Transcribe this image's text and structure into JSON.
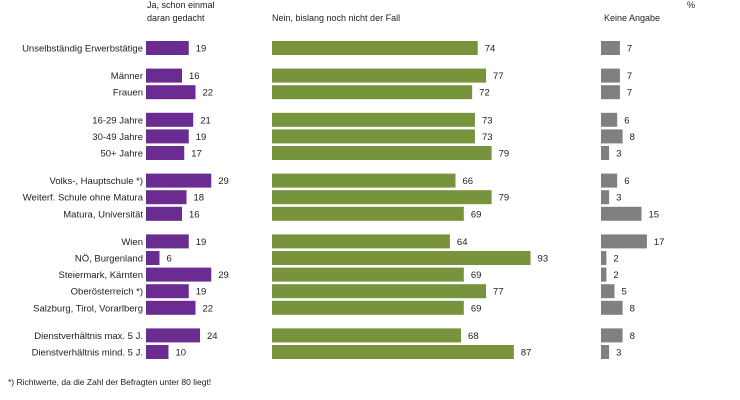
{
  "chart_data": {
    "type": "bar",
    "headers": {
      "ja_line1": "Ja, schon einmal",
      "ja_line2": "daran gedacht",
      "nein": "Nein, bislang noch nicht der Fall",
      "keine": "Keine Angabe",
      "unit": "%"
    },
    "categories": [
      "Unselbständig Erwerbstätige",
      "Männer",
      "Frauen",
      "16-29 Jahre",
      "30-49 Jahre",
      "50+ Jahre",
      "Volks-, Hauptschule *)",
      "Weiterf. Schule ohne Matura",
      "Matura, Universität",
      "Wien",
      "NÖ, Burgenland",
      "Steiermark, Kärnten",
      "Oberösterreich *)",
      "Salzburg, Tirol, Vorarlberg",
      "Dienstverhältnis max. 5 J.",
      "Dienstverhältnis mind. 5 J."
    ],
    "groups": [
      [
        0
      ],
      [
        1,
        2
      ],
      [
        3,
        4,
        5
      ],
      [
        6,
        7,
        8
      ],
      [
        9,
        10,
        11,
        12,
        13
      ],
      [
        14,
        15
      ]
    ],
    "series": [
      {
        "name": "Ja, schon einmal daran gedacht",
        "color": "#6a2c91",
        "values": [
          19,
          16,
          22,
          21,
          19,
          17,
          29,
          18,
          16,
          19,
          6,
          29,
          19,
          22,
          24,
          10
        ]
      },
      {
        "name": "Nein, bislang noch nicht der Fall",
        "color": "#77933c",
        "values": [
          74,
          77,
          72,
          73,
          73,
          79,
          66,
          79,
          69,
          64,
          93,
          69,
          77,
          69,
          68,
          87
        ]
      },
      {
        "name": "Keine Angabe",
        "color": "#808080",
        "values": [
          7,
          7,
          7,
          6,
          8,
          3,
          6,
          3,
          15,
          17,
          2,
          2,
          5,
          8,
          8,
          3
        ]
      }
    ],
    "footnote": "*) Richtwerte, da die Zahl der Befragten unter 80 liegt!"
  }
}
